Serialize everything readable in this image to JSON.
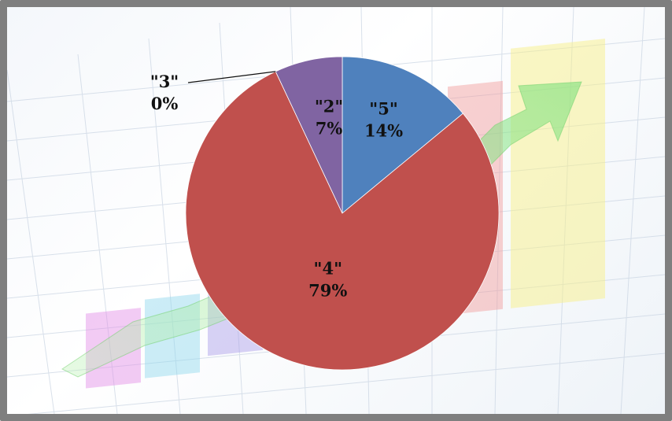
{
  "chart_data": {
    "type": "pie",
    "title": "",
    "slices": [
      {
        "label": "\"5\"",
        "percent_label": "14%",
        "value": 14,
        "color": "#4f81bd"
      },
      {
        "label": "\"4\"",
        "percent_label": "79%",
        "value": 79,
        "color": "#c0504d"
      },
      {
        "label": "\"3\"",
        "percent_label": "0%",
        "value": 0,
        "color": "#9bbb59"
      },
      {
        "label": "\"2\"",
        "percent_label": "7%",
        "value": 7,
        "color": "#8064a2"
      }
    ],
    "legend": "none"
  }
}
